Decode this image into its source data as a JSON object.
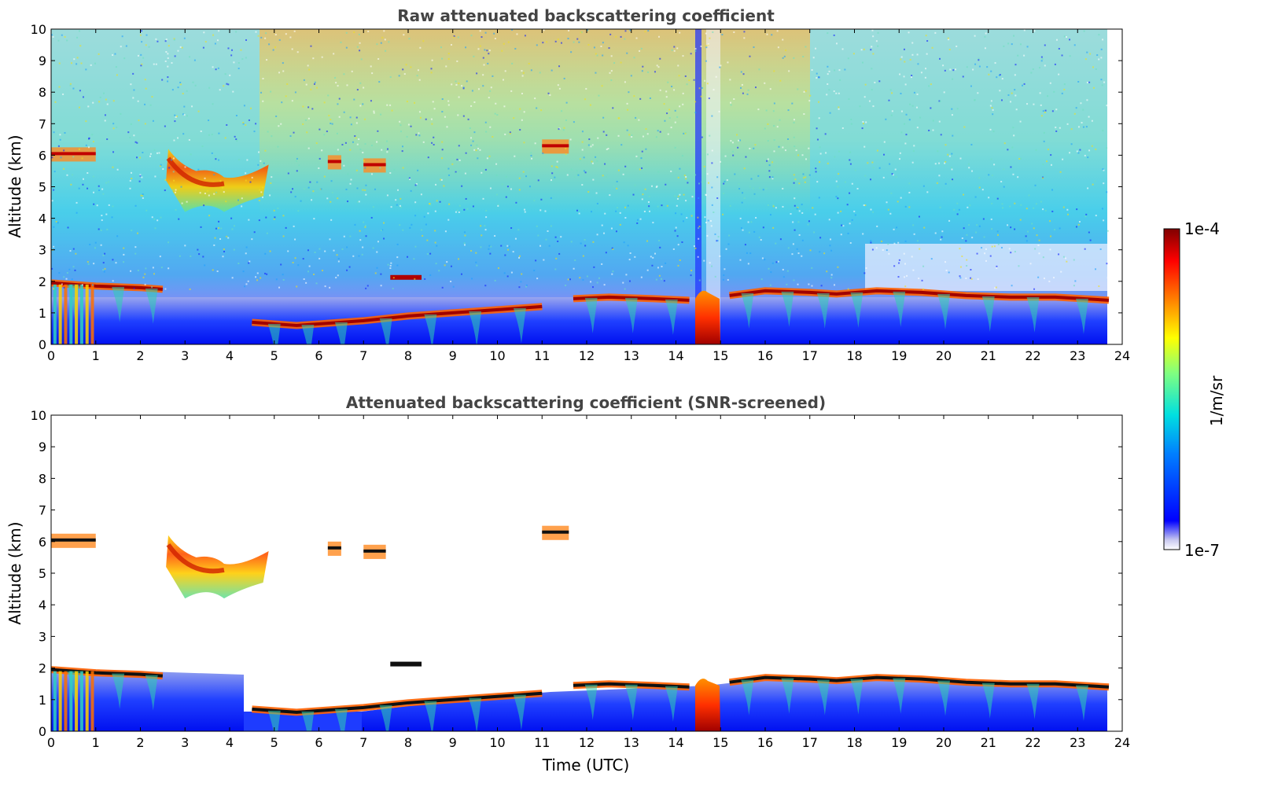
{
  "chart_data": [
    {
      "type": "heatmap",
      "title": "Raw attenuated backscattering coefficient",
      "xlabel": "",
      "ylabel": "Altitude (km)",
      "xlim": [
        0,
        24
      ],
      "ylim": [
        0,
        10
      ],
      "xticks": [
        "0",
        "1",
        "2",
        "3",
        "4",
        "5",
        "6",
        "7",
        "8",
        "9",
        "10",
        "11",
        "12",
        "13",
        "14",
        "15",
        "16",
        "17",
        "18",
        "19",
        "20",
        "21",
        "22",
        "23",
        "24"
      ],
      "yticks": [
        "0",
        "1",
        "2",
        "3",
        "4",
        "5",
        "6",
        "7",
        "8",
        "9",
        "10"
      ],
      "data_end_time": 23.7,
      "features": [
        {
          "kind": "cloud_base_layer",
          "x": [
            0,
            1,
            2,
            2.5
          ],
          "y": [
            1.95,
            1.85,
            1.8,
            1.75
          ]
        },
        {
          "kind": "cloud_base_layer",
          "x": [
            4.5,
            5.5,
            6,
            7,
            8,
            9,
            10,
            11
          ],
          "y": [
            0.7,
            0.6,
            0.65,
            0.75,
            0.9,
            1.0,
            1.1,
            1.2
          ]
        },
        {
          "kind": "cloud_base_layer",
          "x": [
            11.7,
            12.5,
            13.5,
            14.3
          ],
          "y": [
            1.45,
            1.5,
            1.45,
            1.4
          ]
        },
        {
          "kind": "cloud_base_layer",
          "x": [
            15.2,
            16,
            17,
            17.6,
            18.5,
            19.5,
            20.5,
            21.5,
            22.5,
            23.7
          ],
          "y": [
            1.55,
            1.7,
            1.65,
            1.6,
            1.7,
            1.65,
            1.55,
            1.5,
            1.5,
            1.4
          ]
        },
        {
          "kind": "mid_level_cloud",
          "x_range": [
            2.5,
            5.0
          ],
          "y_range": [
            4.2,
            6.2
          ]
        },
        {
          "kind": "precipitation",
          "x_range": [
            14.4,
            15.3
          ],
          "y_range": [
            0,
            1.6
          ]
        }
      ]
    },
    {
      "type": "heatmap",
      "title": "Attenuated backscattering coefficient (SNR-screened)",
      "xlabel": "Time (UTC)",
      "ylabel": "Altitude (km)",
      "xlim": [
        0,
        24
      ],
      "ylim": [
        0,
        10
      ],
      "xticks": [
        "0",
        "1",
        "2",
        "3",
        "4",
        "5",
        "6",
        "7",
        "8",
        "9",
        "10",
        "11",
        "12",
        "13",
        "14",
        "15",
        "16",
        "17",
        "18",
        "19",
        "20",
        "21",
        "22",
        "23",
        "24"
      ],
      "yticks": [
        "0",
        "1",
        "2",
        "3",
        "4",
        "5",
        "6",
        "7",
        "8",
        "9",
        "10"
      ],
      "data_end_time": 23.7
    }
  ],
  "colorbar": {
    "label": "1/m/sr",
    "max_label": "1e-4",
    "min_label": "1e-7",
    "scale": "log",
    "colormap": "jet"
  }
}
